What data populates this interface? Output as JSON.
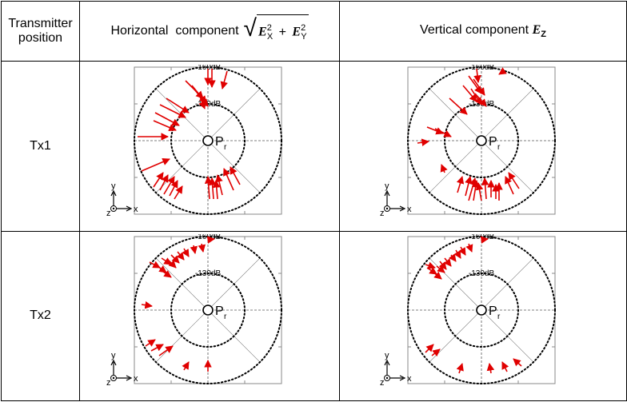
{
  "header": {
    "col1": "Transmitter position",
    "col1_line1": "Transmitter",
    "col1_line2": "position",
    "col2_text": "Horizontal  component",
    "col2_formula_E": "E",
    "col2_formula_x": "X",
    "col2_formula_y": "Y",
    "col2_formula_sq": "2",
    "col2_formula_plus": "+",
    "col3_text": "Vertical component",
    "col3_formula_E": "E",
    "col3_formula_z": "Z"
  },
  "rows": [
    {
      "label": "Tx1"
    },
    {
      "label": "Tx2"
    }
  ],
  "diagram_labels": {
    "outer_ring": "-160dB",
    "inner_ring": "-130dB",
    "receiver_P": "P",
    "receiver_sub": "r",
    "axis_y": "y",
    "axis_x": "x",
    "axis_z": "z"
  },
  "colors": {
    "arrow": "#e00000",
    "ring": "#000000",
    "grid": "#555555"
  }
}
